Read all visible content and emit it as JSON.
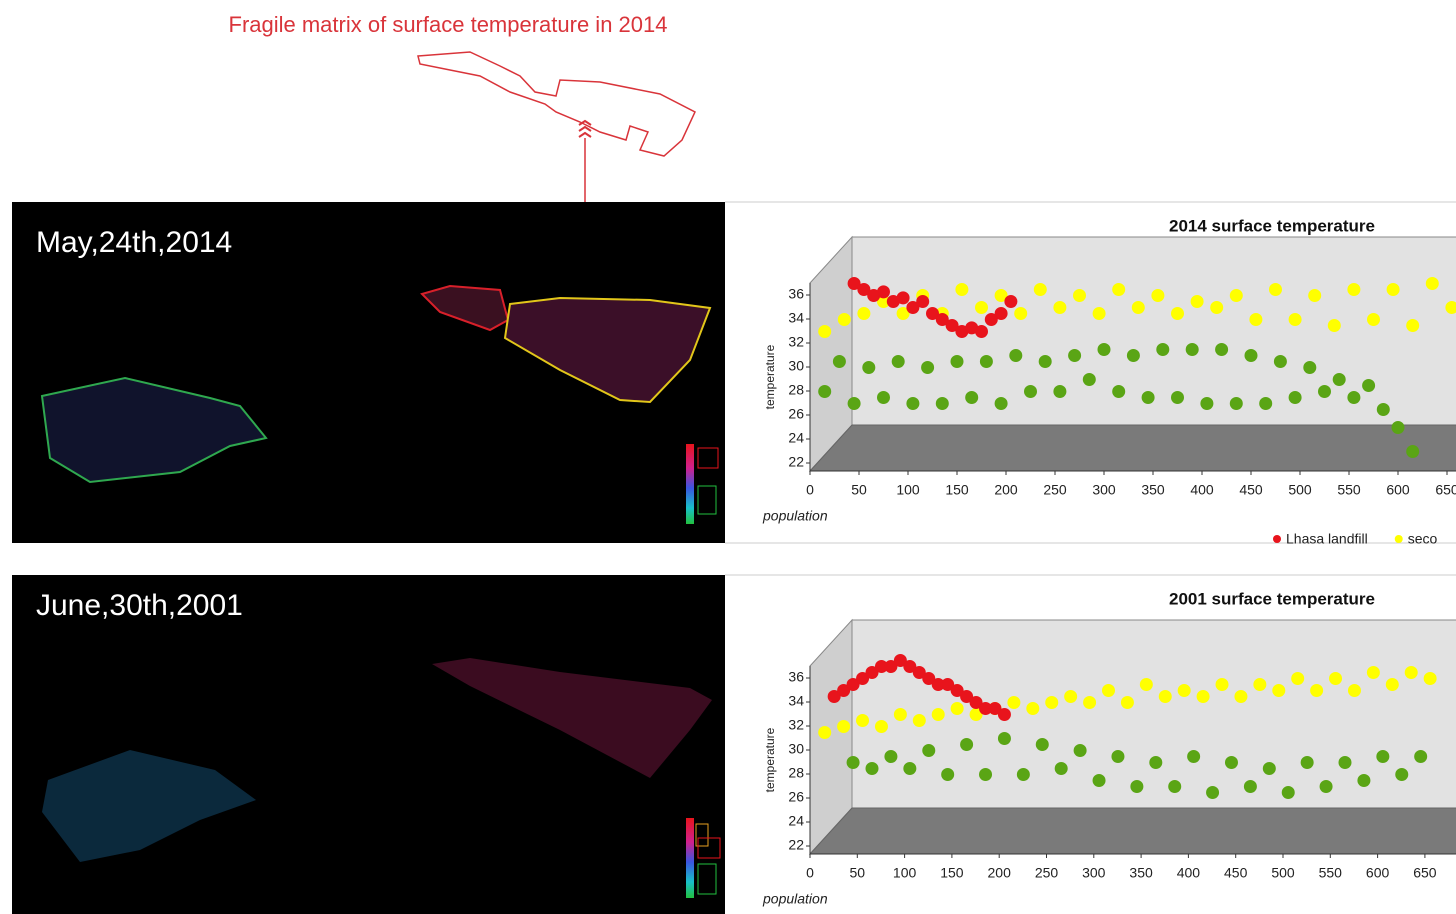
{
  "figure": {
    "title": "Fragile matrix of surface temperature in 2014",
    "panels": [
      "May,24th,2014",
      "June,30th,2001"
    ]
  },
  "chart_data": [
    {
      "type": "scatter",
      "title": "2014 surface temperature",
      "x_label": "population",
      "y_label": "temperature",
      "xlim": [
        0,
        650
      ],
      "ylim": [
        21,
        37
      ],
      "xticks": [
        0,
        50,
        100,
        150,
        200,
        250,
        300,
        350,
        400,
        450,
        500,
        550,
        600,
        650
      ],
      "yticks": [
        22,
        24,
        26,
        28,
        30,
        32,
        34,
        36
      ],
      "series": [
        {
          "name": "Lhasa landfill",
          "color": "#e8141c",
          "x": [
            30,
            40,
            50,
            60,
            70,
            80,
            90,
            100,
            110,
            120,
            130,
            140,
            150,
            160,
            170,
            180,
            190
          ],
          "values": [
            36,
            35.5,
            35,
            35.3,
            34.5,
            34.8,
            34,
            34.5,
            33.5,
            33,
            32.5,
            32,
            32.3,
            32,
            33,
            33.5,
            34.5
          ]
        },
        {
          "name": "seco",
          "color": "#ffff00",
          "x": [
            0,
            20,
            40,
            60,
            80,
            100,
            120,
            140,
            160,
            180,
            200,
            220,
            240,
            260,
            280,
            300,
            320,
            340,
            360,
            380,
            400,
            420,
            440,
            460,
            480,
            500,
            520,
            540,
            560,
            580,
            600,
            620,
            640
          ],
          "values": [
            32,
            33,
            33.5,
            34.5,
            33.5,
            35,
            33.5,
            35.5,
            34,
            35,
            33.5,
            35.5,
            34,
            35,
            33.5,
            35.5,
            34,
            35,
            33.5,
            34.5,
            34,
            35,
            33,
            35.5,
            33,
            35,
            32.5,
            35.5,
            33,
            35.5,
            32.5,
            36,
            34
          ]
        },
        {
          "color": "#5aa515",
          "x": [
            0,
            15,
            30,
            45,
            60,
            75,
            90,
            105,
            120,
            135,
            150,
            165,
            180,
            195,
            210,
            225,
            240,
            255,
            270,
            285,
            300,
            315,
            330,
            345,
            360,
            375,
            390,
            405,
            420,
            435,
            450,
            465,
            480,
            495,
            510,
            525,
            540,
            555,
            570,
            585,
            600
          ],
          "values": [
            27,
            29.5,
            26,
            29,
            26.5,
            29.5,
            26,
            29,
            26,
            29.5,
            26.5,
            29.5,
            26,
            30,
            27,
            29.5,
            27,
            30,
            28,
            30.5,
            27,
            30,
            26.5,
            30.5,
            26.5,
            30.5,
            26,
            30.5,
            26,
            30,
            26,
            29.5,
            26.5,
            29,
            27,
            28,
            26.5,
            27.5,
            25.5,
            24,
            22
          ]
        }
      ]
    },
    {
      "type": "scatter",
      "title": "2001 surface temperature",
      "x_label": "population",
      "y_label": "temperature",
      "xlim": [
        0,
        650
      ],
      "ylim": [
        21,
        37
      ],
      "xticks": [
        0,
        50,
        100,
        150,
        200,
        250,
        300,
        350,
        400,
        450,
        500,
        550,
        600,
        650
      ],
      "yticks": [
        22,
        24,
        26,
        28,
        30,
        32,
        34,
        36
      ],
      "series": [
        {
          "color": "#e8141c",
          "x": [
            10,
            20,
            30,
            40,
            50,
            60,
            70,
            80,
            90,
            100,
            110,
            120,
            130,
            140,
            150,
            160,
            170,
            180,
            190
          ],
          "values": [
            33.5,
            34,
            34.5,
            35,
            35.5,
            36,
            36,
            36.5,
            36,
            35.5,
            35,
            34.5,
            34.5,
            34,
            33.5,
            33,
            32.5,
            32.5,
            32
          ]
        },
        {
          "color": "#ffff00",
          "x": [
            0,
            20,
            40,
            60,
            80,
            100,
            120,
            140,
            160,
            180,
            200,
            220,
            240,
            260,
            280,
            300,
            320,
            340,
            360,
            380,
            400,
            420,
            440,
            460,
            480,
            500,
            520,
            540,
            560,
            580,
            600,
            620,
            640
          ],
          "values": [
            30.5,
            31,
            31.5,
            31,
            32,
            31.5,
            32,
            32.5,
            32,
            32.5,
            33,
            32.5,
            33,
            33.5,
            33,
            34,
            33,
            34.5,
            33.5,
            34,
            33.5,
            34.5,
            33.5,
            34.5,
            34,
            35,
            34,
            35,
            34,
            35.5,
            34.5,
            35.5,
            35
          ]
        },
        {
          "color": "#5aa515",
          "x": [
            30,
            50,
            70,
            90,
            110,
            130,
            150,
            170,
            190,
            210,
            230,
            250,
            270,
            290,
            310,
            330,
            350,
            370,
            390,
            410,
            430,
            450,
            470,
            490,
            510,
            530,
            550,
            570,
            590,
            610,
            630
          ],
          "values": [
            28,
            27.5,
            28.5,
            27.5,
            29,
            27,
            29.5,
            27,
            30,
            27,
            29.5,
            27.5,
            29,
            26.5,
            28.5,
            26,
            28,
            26,
            28.5,
            25.5,
            28,
            26,
            27.5,
            25.5,
            28,
            26,
            28,
            26.5,
            28.5,
            27,
            28.5
          ]
        }
      ]
    }
  ]
}
